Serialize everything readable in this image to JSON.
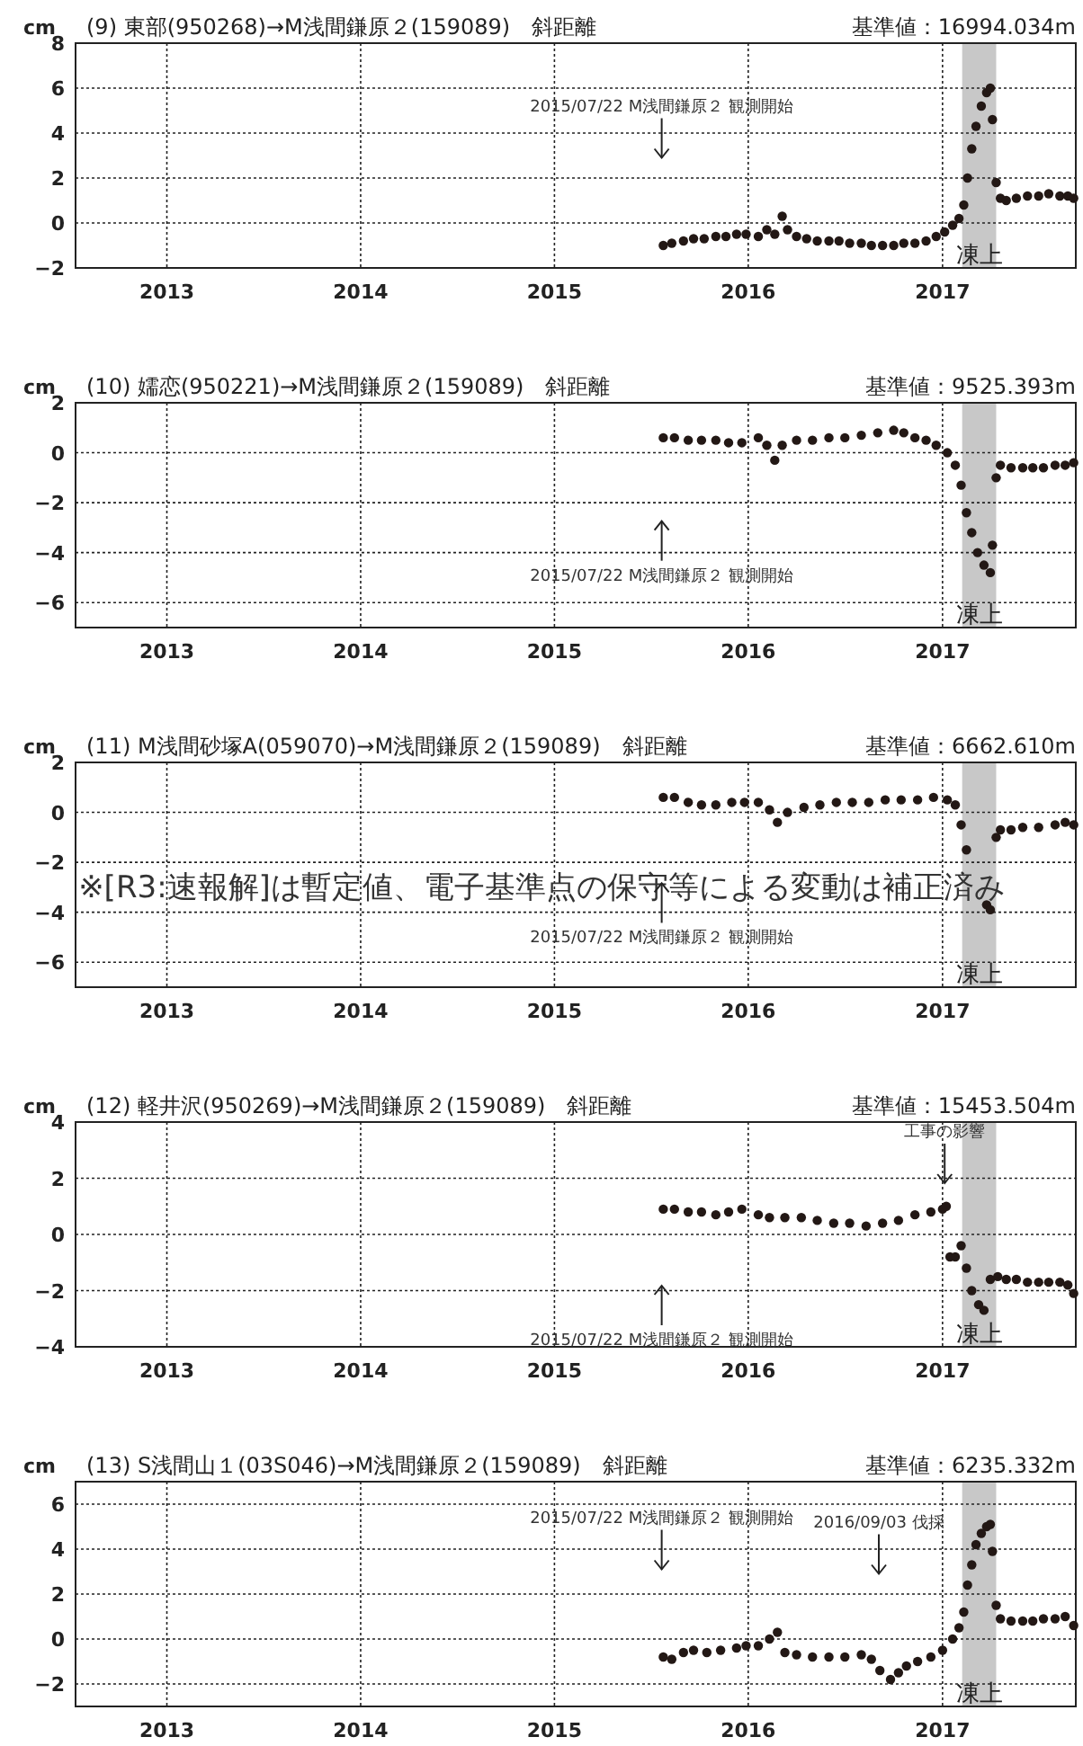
{
  "chart_data": [
    {
      "type": "scatter",
      "title": "(9) 東部(950268)→M浅間鎌原２(159089)　斜距離",
      "subtitle": "基準値：16994.034m",
      "ylabel": "cm",
      "xlim": [
        "2012-07-13",
        "2017-09-09"
      ],
      "xticks": [
        {
          "value": "2013-01-01",
          "label": "2013"
        },
        {
          "value": "2014-01-01",
          "label": "2014"
        },
        {
          "value": "2015-01-01",
          "label": "2015"
        },
        {
          "value": "2016-01-01",
          "label": "2016"
        },
        {
          "value": "2017-01-01",
          "label": "2017"
        }
      ],
      "ylim": [
        -2,
        8
      ],
      "yticks": [
        -2,
        0,
        2,
        4,
        6,
        8
      ],
      "grid": true,
      "marker": "circle",
      "bands": [
        {
          "axis": "x",
          "from": "2017-02-07",
          "to": "2017-04-12",
          "label": "凍上",
          "color": "#c8c8c8"
        }
      ],
      "ref_lines": [
        {
          "axis": "x",
          "value": "2015-07-22",
          "label": "2015/07/22 M浅間鎌原２ 観測開始"
        }
      ],
      "series": [
        {
          "color": "#231815",
          "x": [
            "2015-07-25",
            "2015-08-10",
            "2015-09-01",
            "2015-09-20",
            "2015-10-10",
            "2015-11-01",
            "2015-11-20",
            "2015-12-10",
            "2015-12-28",
            "2016-01-20",
            "2016-02-05",
            "2016-02-20",
            "2016-03-05",
            "2016-03-15",
            "2016-04-01",
            "2016-04-20",
            "2016-05-10",
            "2016-06-01",
            "2016-06-20",
            "2016-07-10",
            "2016-08-01",
            "2016-08-20",
            "2016-09-10",
            "2016-10-01",
            "2016-10-20",
            "2016-11-10",
            "2016-12-01",
            "2016-12-20",
            "2017-01-05",
            "2017-01-20",
            "2017-02-01",
            "2017-02-10",
            "2017-02-17",
            "2017-02-25",
            "2017-03-05",
            "2017-03-15",
            "2017-03-25",
            "2017-04-01",
            "2017-04-05",
            "2017-04-12",
            "2017-04-20",
            "2017-05-01",
            "2017-05-20",
            "2017-06-10",
            "2017-07-01",
            "2017-07-20",
            "2017-08-10",
            "2017-08-25",
            "2017-09-05"
          ],
          "values": [
            -1.0,
            -0.9,
            -0.8,
            -0.7,
            -0.7,
            -0.6,
            -0.6,
            -0.5,
            -0.5,
            -0.6,
            -0.3,
            -0.5,
            0.3,
            -0.3,
            -0.6,
            -0.7,
            -0.8,
            -0.8,
            -0.8,
            -0.9,
            -0.9,
            -1.0,
            -1.0,
            -1.0,
            -0.9,
            -0.9,
            -0.8,
            -0.6,
            -0.4,
            -0.1,
            0.2,
            0.8,
            2.0,
            3.3,
            4.3,
            5.2,
            5.8,
            6.0,
            4.6,
            1.8,
            1.1,
            1.0,
            1.1,
            1.2,
            1.2,
            1.3,
            1.2,
            1.2,
            1.1
          ]
        }
      ]
    },
    {
      "type": "scatter",
      "title": "(10) 嬬恋(950221)→M浅間鎌原２(159089)　斜距離",
      "subtitle": "基準値：9525.393m",
      "ylabel": "cm",
      "xlim": [
        "2012-07-13",
        "2017-09-09"
      ],
      "xticks": [
        {
          "value": "2013-01-01",
          "label": "2013"
        },
        {
          "value": "2014-01-01",
          "label": "2014"
        },
        {
          "value": "2015-01-01",
          "label": "2015"
        },
        {
          "value": "2016-01-01",
          "label": "2016"
        },
        {
          "value": "2017-01-01",
          "label": "2017"
        }
      ],
      "ylim": [
        -7,
        2
      ],
      "yticks": [
        -6,
        -4,
        -2,
        0,
        2
      ],
      "grid": true,
      "marker": "circle",
      "bands": [
        {
          "axis": "x",
          "from": "2017-02-07",
          "to": "2017-04-12",
          "label": "凍上",
          "color": "#c8c8c8"
        }
      ],
      "ref_lines": [
        {
          "axis": "x",
          "value": "2015-07-22",
          "label": "2015/07/22 M浅間鎌原２ 観測開始"
        }
      ],
      "series": [
        {
          "color": "#231815",
          "x": [
            "2015-07-25",
            "2015-08-15",
            "2015-09-10",
            "2015-10-05",
            "2015-11-01",
            "2015-11-25",
            "2015-12-20",
            "2016-01-20",
            "2016-02-05",
            "2016-02-20",
            "2016-03-05",
            "2016-04-01",
            "2016-05-01",
            "2016-06-01",
            "2016-07-01",
            "2016-08-01",
            "2016-09-01",
            "2016-10-01",
            "2016-10-20",
            "2016-11-10",
            "2016-12-01",
            "2016-12-20",
            "2017-01-10",
            "2017-01-25",
            "2017-02-05",
            "2017-02-15",
            "2017-02-25",
            "2017-03-08",
            "2017-03-20",
            "2017-04-01",
            "2017-04-05",
            "2017-04-12",
            "2017-04-20",
            "2017-05-10",
            "2017-06-01",
            "2017-06-20",
            "2017-07-10",
            "2017-08-01",
            "2017-08-20",
            "2017-09-05"
          ],
          "values": [
            0.6,
            0.6,
            0.5,
            0.5,
            0.5,
            0.4,
            0.4,
            0.6,
            0.3,
            -0.3,
            0.3,
            0.5,
            0.5,
            0.6,
            0.6,
            0.7,
            0.8,
            0.9,
            0.8,
            0.6,
            0.5,
            0.3,
            0.0,
            -0.5,
            -1.3,
            -2.4,
            -3.2,
            -4.0,
            -4.5,
            -4.8,
            -3.7,
            -1.0,
            -0.5,
            -0.6,
            -0.6,
            -0.6,
            -0.6,
            -0.5,
            -0.5,
            -0.4
          ]
        }
      ]
    },
    {
      "type": "scatter",
      "title": "(11) M浅間砂塚A(059070)→M浅間鎌原２(159089)　斜距離",
      "subtitle": "基準値：6662.610m",
      "ylabel": "cm",
      "xlim": [
        "2012-07-13",
        "2017-09-09"
      ],
      "xticks": [
        {
          "value": "2013-01-01",
          "label": "2013"
        },
        {
          "value": "2014-01-01",
          "label": "2014"
        },
        {
          "value": "2015-01-01",
          "label": "2015"
        },
        {
          "value": "2016-01-01",
          "label": "2016"
        },
        {
          "value": "2017-01-01",
          "label": "2017"
        }
      ],
      "ylim": [
        -7,
        2
      ],
      "yticks": [
        -6,
        -4,
        -2,
        0,
        2
      ],
      "grid": true,
      "marker": "circle",
      "bands": [
        {
          "axis": "x",
          "from": "2017-02-07",
          "to": "2017-04-12",
          "label": "凍上",
          "color": "#c8c8c8"
        }
      ],
      "ref_lines": [
        {
          "axis": "x",
          "value": "2015-07-22",
          "label": "2015/07/22 M浅間鎌原２ 観測開始"
        }
      ],
      "annotations": [
        "※[R3:速報解]は暫定値、電子基準点の保守等による変動は補正済み"
      ],
      "series": [
        {
          "color": "#231815",
          "x": [
            "2015-07-25",
            "2015-08-15",
            "2015-09-10",
            "2015-10-05",
            "2015-11-01",
            "2015-12-01",
            "2015-12-25",
            "2016-01-20",
            "2016-02-10",
            "2016-02-25",
            "2016-03-15",
            "2016-04-15",
            "2016-05-15",
            "2016-06-15",
            "2016-07-15",
            "2016-08-15",
            "2016-09-15",
            "2016-10-15",
            "2016-11-15",
            "2016-12-15",
            "2017-01-10",
            "2017-01-25",
            "2017-02-05",
            "2017-02-15",
            "2017-03-25",
            "2017-04-01",
            "2017-04-12",
            "2017-04-20",
            "2017-05-10",
            "2017-06-01",
            "2017-07-01",
            "2017-08-01",
            "2017-08-20",
            "2017-09-05"
          ],
          "values": [
            0.6,
            0.6,
            0.4,
            0.3,
            0.3,
            0.4,
            0.4,
            0.4,
            0.1,
            -0.4,
            0.0,
            0.2,
            0.3,
            0.4,
            0.4,
            0.4,
            0.5,
            0.5,
            0.5,
            0.6,
            0.5,
            0.3,
            -0.5,
            -1.5,
            -3.7,
            -3.9,
            -1.0,
            -0.7,
            -0.7,
            -0.6,
            -0.6,
            -0.5,
            -0.4,
            -0.5
          ]
        }
      ]
    },
    {
      "type": "scatter",
      "title": "(12) 軽井沢(950269)→M浅間鎌原２(159089)　斜距離",
      "subtitle": "基準値：15453.504m",
      "ylabel": "cm",
      "xlim": [
        "2012-07-13",
        "2017-09-09"
      ],
      "xticks": [
        {
          "value": "2013-01-01",
          "label": "2013"
        },
        {
          "value": "2014-01-01",
          "label": "2014"
        },
        {
          "value": "2015-01-01",
          "label": "2015"
        },
        {
          "value": "2016-01-01",
          "label": "2016"
        },
        {
          "value": "2017-01-01",
          "label": "2017"
        }
      ],
      "ylim": [
        -4,
        4
      ],
      "yticks": [
        -4,
        -2,
        0,
        2,
        4
      ],
      "grid": true,
      "marker": "circle",
      "bands": [
        {
          "axis": "x",
          "from": "2017-02-07",
          "to": "2017-04-12",
          "label": "凍上",
          "color": "#c8c8c8"
        }
      ],
      "ref_lines": [
        {
          "axis": "x",
          "value": "2015-07-22",
          "label": "2015/07/22 M浅間鎌原２ 観測開始"
        },
        {
          "axis": "x",
          "value": "2017-01-05",
          "label": "工事の影響"
        }
      ],
      "series": [
        {
          "color": "#231815",
          "x": [
            "2015-07-25",
            "2015-08-15",
            "2015-09-10",
            "2015-10-05",
            "2015-11-01",
            "2015-11-25",
            "2015-12-20",
            "2016-01-20",
            "2016-02-10",
            "2016-03-10",
            "2016-04-10",
            "2016-05-10",
            "2016-06-10",
            "2016-07-10",
            "2016-08-10",
            "2016-09-10",
            "2016-10-10",
            "2016-11-10",
            "2016-12-10",
            "2017-01-01",
            "2017-01-08",
            "2017-01-15",
            "2017-01-25",
            "2017-02-05",
            "2017-02-15",
            "2017-02-25",
            "2017-03-10",
            "2017-03-20",
            "2017-04-01",
            "2017-04-15",
            "2017-05-01",
            "2017-05-20",
            "2017-06-10",
            "2017-07-01",
            "2017-07-20",
            "2017-08-10",
            "2017-08-25",
            "2017-09-05"
          ],
          "values": [
            0.9,
            0.9,
            0.8,
            0.8,
            0.7,
            0.8,
            0.9,
            0.7,
            0.6,
            0.6,
            0.6,
            0.5,
            0.4,
            0.4,
            0.3,
            0.4,
            0.5,
            0.7,
            0.8,
            0.9,
            1.0,
            -0.8,
            -0.8,
            -0.4,
            -1.2,
            -2.0,
            -2.5,
            -2.7,
            -1.6,
            -1.5,
            -1.6,
            -1.6,
            -1.7,
            -1.7,
            -1.7,
            -1.7,
            -1.8,
            -2.1
          ]
        }
      ]
    },
    {
      "type": "scatter",
      "title": "(13) S浅間山１(03S046)→M浅間鎌原２(159089)　斜距離",
      "subtitle": "基準値：6235.332m",
      "ylabel": "cm",
      "xlim": [
        "2012-07-13",
        "2017-09-09"
      ],
      "xticks": [
        {
          "value": "2013-01-01",
          "label": "2013"
        },
        {
          "value": "2014-01-01",
          "label": "2014"
        },
        {
          "value": "2015-01-01",
          "label": "2015"
        },
        {
          "value": "2016-01-01",
          "label": "2016"
        },
        {
          "value": "2017-01-01",
          "label": "2017"
        }
      ],
      "ylim": [
        -3,
        7
      ],
      "yticks": [
        -2,
        0,
        2,
        4,
        6
      ],
      "grid": true,
      "marker": "circle",
      "bands": [
        {
          "axis": "x",
          "from": "2017-02-07",
          "to": "2017-04-12",
          "label": "凍上",
          "color": "#c8c8c8"
        }
      ],
      "ref_lines": [
        {
          "axis": "x",
          "value": "2015-07-22",
          "label": "2015/07/22 M浅間鎌原２ 観測開始"
        },
        {
          "axis": "x",
          "value": "2016-09-03",
          "label": "2016/09/03 伐採"
        }
      ],
      "series": [
        {
          "color": "#231815",
          "x": [
            "2015-07-25",
            "2015-08-10",
            "2015-09-01",
            "2015-09-20",
            "2015-10-15",
            "2015-11-10",
            "2015-12-10",
            "2015-12-28",
            "2016-01-20",
            "2016-02-10",
            "2016-02-25",
            "2016-03-10",
            "2016-04-01",
            "2016-05-01",
            "2016-06-01",
            "2016-07-01",
            "2016-08-01",
            "2016-08-20",
            "2016-09-05",
            "2016-09-25",
            "2016-10-10",
            "2016-10-25",
            "2016-11-15",
            "2016-12-10",
            "2017-01-01",
            "2017-01-20",
            "2017-02-01",
            "2017-02-10",
            "2017-02-17",
            "2017-02-25",
            "2017-03-05",
            "2017-03-15",
            "2017-03-25",
            "2017-04-01",
            "2017-04-05",
            "2017-04-12",
            "2017-04-20",
            "2017-05-10",
            "2017-06-01",
            "2017-06-20",
            "2017-07-10",
            "2017-08-01",
            "2017-08-20",
            "2017-09-05"
          ],
          "values": [
            -0.8,
            -0.9,
            -0.6,
            -0.5,
            -0.6,
            -0.5,
            -0.4,
            -0.3,
            -0.3,
            0.0,
            0.3,
            -0.6,
            -0.7,
            -0.8,
            -0.8,
            -0.8,
            -0.7,
            -0.9,
            -1.4,
            -1.8,
            -1.5,
            -1.2,
            -1.0,
            -0.8,
            -0.5,
            0.0,
            0.5,
            1.2,
            2.4,
            3.3,
            4.2,
            4.7,
            5.0,
            5.1,
            3.9,
            1.5,
            0.9,
            0.8,
            0.8,
            0.8,
            0.9,
            0.9,
            1.0,
            0.6
          ]
        }
      ]
    }
  ]
}
